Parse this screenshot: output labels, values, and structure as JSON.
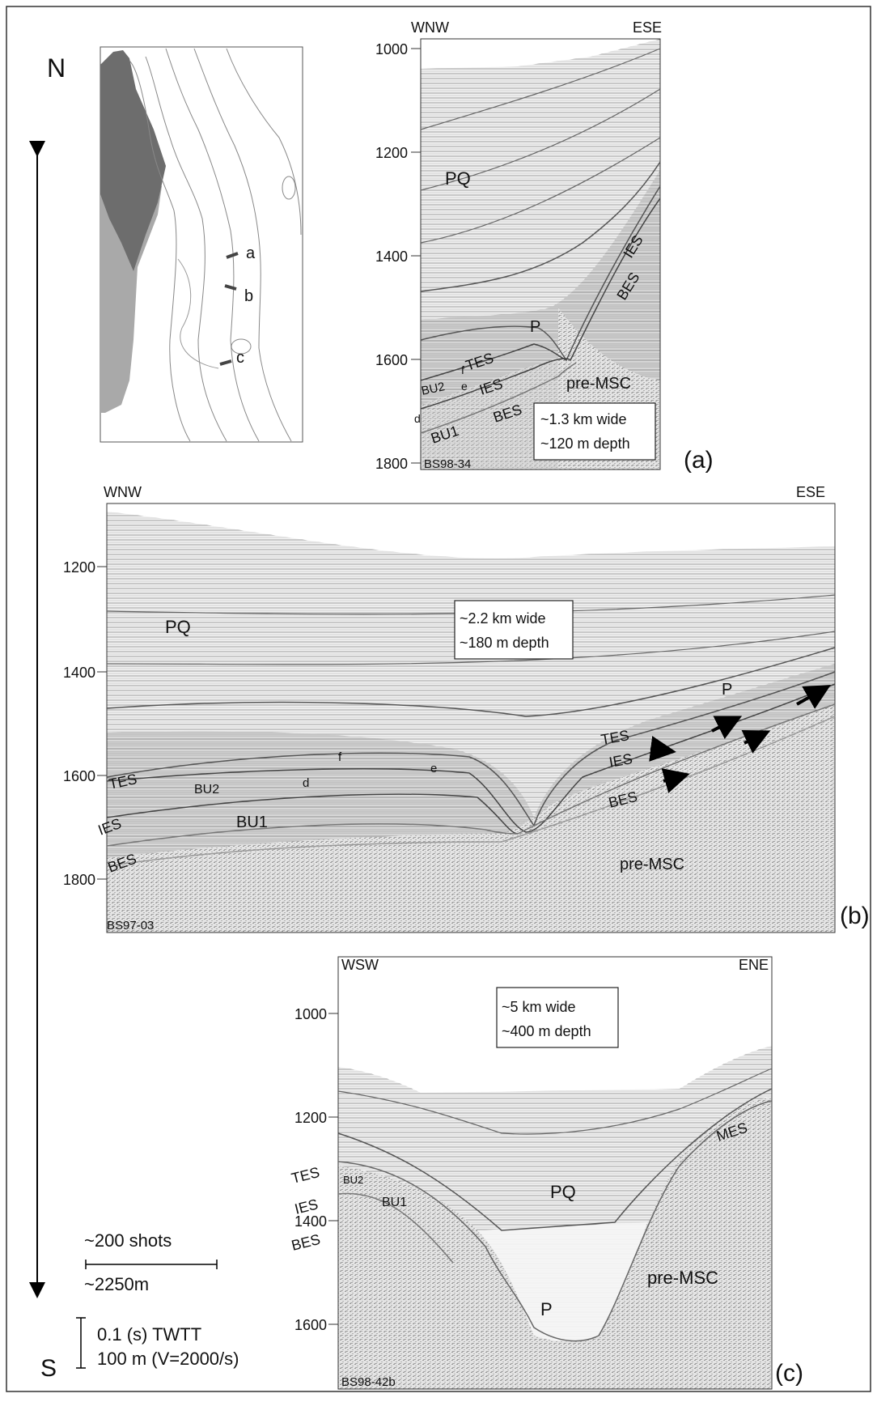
{
  "compass": {
    "north": "N",
    "south": "S"
  },
  "scale": {
    "shots": "~200 shots",
    "distance": "~2250m",
    "twtt": "0.1 (s) TWTT",
    "depth": "100 m (V=2000/s)"
  },
  "map": {
    "labels": [
      "a",
      "b",
      "c"
    ]
  },
  "panels": [
    {
      "id": "a",
      "panel_label": "(a)",
      "left_dir": "WNW",
      "right_dir": "ESE",
      "profile": "BS98-34",
      "y_ticks": [
        "1000",
        "1200",
        "1400",
        "1600",
        "1800"
      ],
      "box": [
        "~1.3 km wide",
        "~120 m depth"
      ],
      "labels": [
        "PQ",
        "P",
        "TES",
        "IES",
        "BES",
        "IES",
        "BES",
        "BU2",
        "BU1",
        "pre-MSC",
        "d",
        "e",
        "f"
      ]
    },
    {
      "id": "b",
      "panel_label": "(b)",
      "left_dir": "WNW",
      "right_dir": "ESE",
      "profile": "BS97-03",
      "y_ticks": [
        "1200",
        "1400",
        "1600",
        "1800"
      ],
      "box": [
        "~2.2 km wide",
        "~180 m depth"
      ],
      "labels": [
        "PQ",
        "P",
        "TES",
        "IES",
        "BES",
        "TES",
        "IES",
        "BES",
        "BU2",
        "BU1",
        "pre-MSC",
        "d",
        "e",
        "f"
      ]
    },
    {
      "id": "c",
      "panel_label": "(c)",
      "left_dir": "WSW",
      "right_dir": "ENE",
      "profile": "BS98-42b",
      "y_ticks": [
        "1000",
        "1200",
        "1400",
        "1600"
      ],
      "box": [
        "~5 km wide",
        "~400 m depth"
      ],
      "labels": [
        "PQ",
        "P",
        "TES",
        "IES",
        "BES",
        "MES",
        "BU2",
        "BU1",
        "pre-MSC"
      ]
    }
  ]
}
